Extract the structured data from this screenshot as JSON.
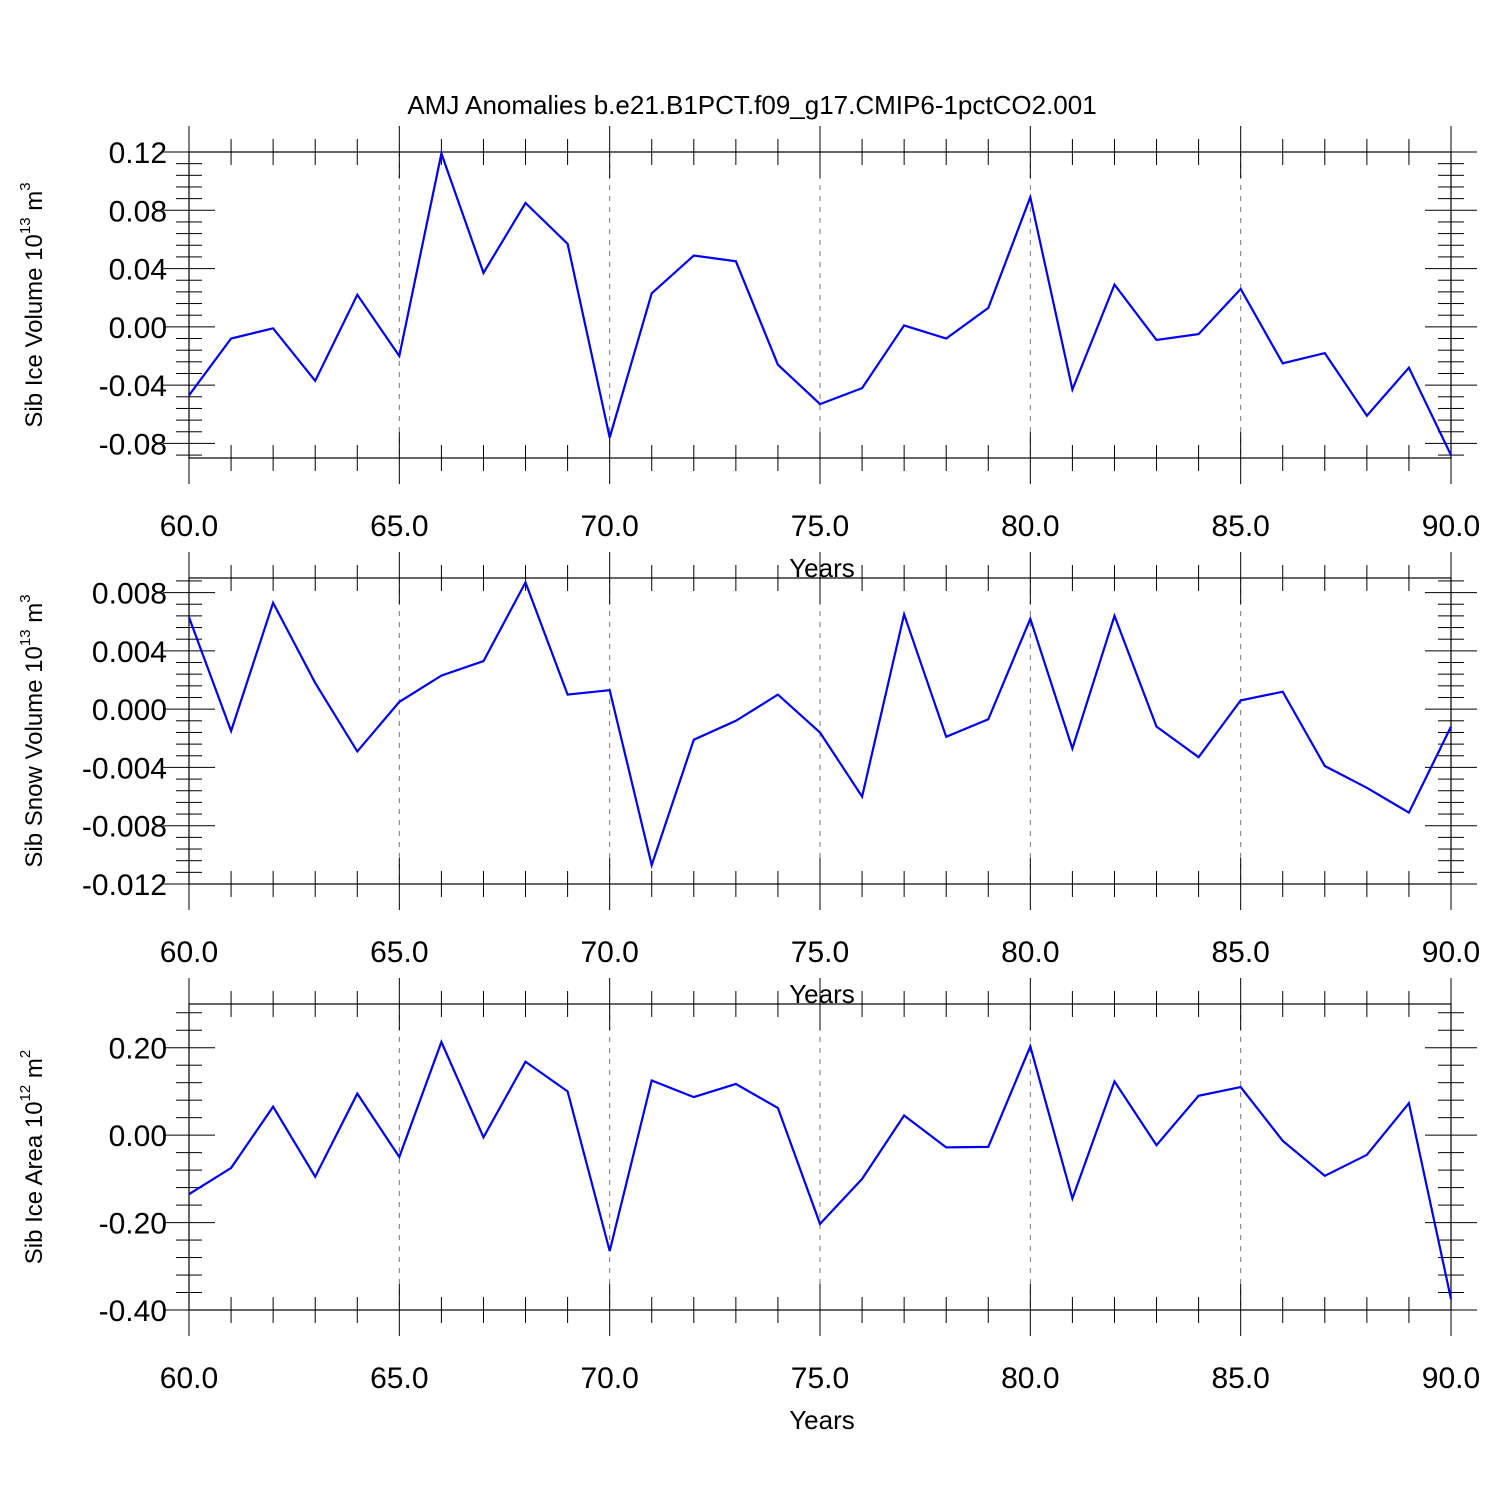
{
  "title": "AMJ Anomalies b.e21.B1PCT.f09_g17.CMIP6-1pctCO2.001",
  "colors": {
    "series": "#0000ee",
    "axis": "#000000",
    "grid": "#777777"
  },
  "chart_data": [
    {
      "type": "line",
      "ylabel": {
        "text": "Sib Ice Volume 10",
        "exp": "13",
        "unit": "m",
        "unit_exp": "3"
      },
      "xlabel": "Years",
      "xlim": [
        60,
        90
      ],
      "ylim": [
        -0.09,
        0.12
      ],
      "x_ticks": [
        60,
        65,
        70,
        75,
        80,
        85,
        90
      ],
      "x_tick_labels": [
        "60.0",
        "65.0",
        "70.0",
        "75.0",
        "80.0",
        "85.0",
        "90.0"
      ],
      "y_ticks": [
        -0.08,
        -0.04,
        0.0,
        0.04,
        0.08,
        0.12
      ],
      "y_tick_labels": [
        "-0.08",
        "-0.04",
        "0.00",
        "0.04",
        "0.08",
        "0.12"
      ],
      "grid": "vertical dashed at major x ticks",
      "x": [
        60,
        61,
        62,
        63,
        64,
        65,
        66,
        67,
        68,
        69,
        70,
        71,
        72,
        73,
        74,
        75,
        76,
        77,
        78,
        79,
        80,
        81,
        82,
        83,
        84,
        85,
        86,
        87,
        88,
        89,
        90
      ],
      "values": [
        -0.047,
        -0.008,
        -0.001,
        -0.037,
        0.022,
        -0.02,
        0.119,
        0.037,
        0.085,
        0.057,
        -0.076,
        0.023,
        0.049,
        0.045,
        -0.026,
        -0.053,
        -0.042,
        0.001,
        -0.008,
        0.013,
        0.089,
        -0.043,
        0.029,
        -0.009,
        -0.005,
        0.026,
        -0.025,
        -0.018,
        -0.061,
        -0.028,
        -0.088
      ]
    },
    {
      "type": "line",
      "ylabel": {
        "text": "Sib Snow Volume 10",
        "exp": "13",
        "unit": "m",
        "unit_exp": "3"
      },
      "xlabel": "Years",
      "xlim": [
        60,
        90
      ],
      "ylim": [
        -0.012,
        0.009
      ],
      "x_ticks": [
        60,
        65,
        70,
        75,
        80,
        85,
        90
      ],
      "x_tick_labels": [
        "60.0",
        "65.0",
        "70.0",
        "75.0",
        "80.0",
        "85.0",
        "90.0"
      ],
      "y_ticks": [
        -0.012,
        -0.008,
        -0.004,
        0.0,
        0.004,
        0.008
      ],
      "y_tick_labels": [
        "-0.012",
        "-0.008",
        "-0.004",
        "0.000",
        "0.004",
        "0.008"
      ],
      "grid": "vertical dashed at major x ticks",
      "x": [
        60,
        61,
        62,
        63,
        64,
        65,
        66,
        67,
        68,
        69,
        70,
        71,
        72,
        73,
        74,
        75,
        76,
        77,
        78,
        79,
        80,
        81,
        82,
        83,
        84,
        85,
        86,
        87,
        88,
        89,
        90
      ],
      "values": [
        0.0063,
        -0.0015,
        0.0073,
        0.0018,
        -0.0029,
        0.0005,
        0.0023,
        0.0033,
        0.0087,
        0.001,
        0.0013,
        -0.0107,
        -0.0021,
        -0.0008,
        0.001,
        -0.0016,
        -0.006,
        0.0065,
        -0.0019,
        -0.0007,
        0.0062,
        -0.0027,
        0.0064,
        -0.0012,
        -0.0033,
        0.0006,
        0.0012,
        -0.0039,
        -0.0054,
        -0.0071,
        -0.0012
      ]
    },
    {
      "type": "line",
      "ylabel": {
        "text": "Sib Ice Area 10",
        "exp": "12",
        "unit": "m",
        "unit_exp": "2"
      },
      "xlabel": "Years",
      "xlim": [
        60,
        90
      ],
      "ylim": [
        -0.4,
        0.3
      ],
      "x_ticks": [
        60,
        65,
        70,
        75,
        80,
        85,
        90
      ],
      "x_tick_labels": [
        "60.0",
        "65.0",
        "70.0",
        "75.0",
        "80.0",
        "85.0",
        "90.0"
      ],
      "y_ticks": [
        -0.4,
        -0.2,
        0.0,
        0.2
      ],
      "y_tick_labels": [
        "-0.40",
        "-0.20",
        "0.00",
        "0.20"
      ],
      "grid": "vertical dashed at major x ticks",
      "x": [
        60,
        61,
        62,
        63,
        64,
        65,
        66,
        67,
        68,
        69,
        70,
        71,
        72,
        73,
        74,
        75,
        76,
        77,
        78,
        79,
        80,
        81,
        82,
        83,
        84,
        85,
        86,
        87,
        88,
        89,
        90
      ],
      "values": [
        -0.135,
        -0.075,
        0.065,
        -0.095,
        0.095,
        -0.05,
        0.213,
        -0.005,
        0.168,
        0.1,
        -0.265,
        0.125,
        0.087,
        0.117,
        0.062,
        -0.203,
        -0.1,
        0.045,
        -0.028,
        -0.027,
        0.203,
        -0.145,
        0.123,
        -0.023,
        0.09,
        0.11,
        -0.013,
        -0.093,
        -0.045,
        0.073,
        -0.375
      ]
    }
  ]
}
